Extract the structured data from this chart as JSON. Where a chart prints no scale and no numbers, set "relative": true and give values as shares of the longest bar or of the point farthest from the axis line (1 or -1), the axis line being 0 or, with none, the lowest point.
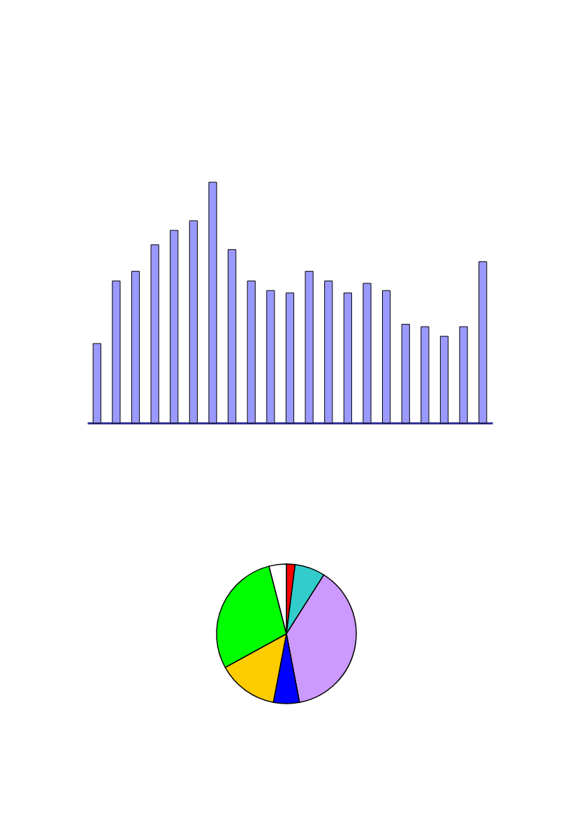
{
  "chart_data": [
    {
      "type": "bar",
      "relative": true,
      "categories": [
        null,
        null,
        null,
        null,
        null,
        null,
        null,
        null,
        null,
        null,
        null,
        null,
        null,
        null,
        null,
        null,
        null,
        null,
        null,
        null,
        null
      ],
      "values": [
        0.33,
        0.59,
        0.63,
        0.74,
        0.8,
        0.84,
        1,
        0.72,
        0.59,
        0.55,
        0.54,
        0.63,
        0.59,
        0.54,
        0.58,
        0.55,
        0.41,
        0.4,
        0.36,
        0.4,
        0.67
      ],
      "color": "#9999ff"
    },
    {
      "type": "pie",
      "categories": [
        null,
        null,
        null,
        null,
        null,
        null,
        null
      ],
      "values": [
        2,
        7,
        38,
        6,
        14,
        29,
        4
      ],
      "colors": [
        "#ff0000",
        "#33cccc",
        "#cc99ff",
        "#0000ff",
        "#ffcc00",
        "#00ff00",
        "#ffffff"
      ]
    }
  ]
}
